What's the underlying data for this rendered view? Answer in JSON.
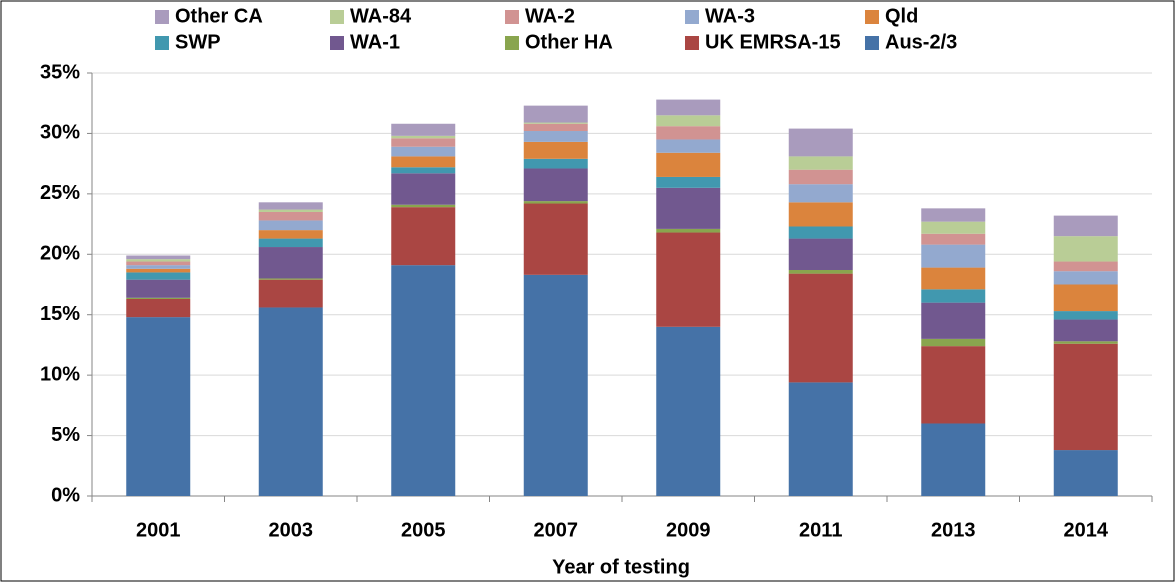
{
  "chart_data": {
    "type": "stacked-bar",
    "x_label": "Year of testing",
    "categories": [
      "2001",
      "2003",
      "2005",
      "2007",
      "2009",
      "2011",
      "2013",
      "2014"
    ],
    "series": [
      {
        "name": "Aus-2/3",
        "color": "#4572a7",
        "values": [
          14.8,
          15.6,
          19.1,
          18.3,
          14.0,
          9.4,
          6.0,
          3.8
        ]
      },
      {
        "name": "UK EMRSA-15",
        "color": "#aa4643",
        "values": [
          1.5,
          2.3,
          4.8,
          5.9,
          7.8,
          9.0,
          6.4,
          8.8
        ]
      },
      {
        "name": "Other HA",
        "color": "#89a54e",
        "values": [
          0.1,
          0.1,
          0.2,
          0.2,
          0.3,
          0.3,
          0.6,
          0.2
        ]
      },
      {
        "name": "WA-1",
        "color": "#71588f",
        "values": [
          1.5,
          2.6,
          2.6,
          2.7,
          3.4,
          2.6,
          3.0,
          1.8
        ]
      },
      {
        "name": "SWP",
        "color": "#4198af",
        "values": [
          0.6,
          0.7,
          0.5,
          0.8,
          0.9,
          1.0,
          1.1,
          0.7
        ]
      },
      {
        "name": "Qld",
        "color": "#db843d",
        "values": [
          0.3,
          0.7,
          0.9,
          1.4,
          2.0,
          2.0,
          1.8,
          2.2
        ]
      },
      {
        "name": "WA-3",
        "color": "#93a9cf",
        "values": [
          0.3,
          0.8,
          0.8,
          0.9,
          1.1,
          1.5,
          1.9,
          1.1
        ]
      },
      {
        "name": "WA-2",
        "color": "#d19392",
        "values": [
          0.3,
          0.7,
          0.7,
          0.6,
          1.1,
          1.2,
          0.9,
          0.8
        ]
      },
      {
        "name": "WA-84",
        "color": "#b9cd96",
        "values": [
          0.2,
          0.2,
          0.2,
          0.1,
          0.9,
          1.1,
          1.0,
          2.1
        ]
      },
      {
        "name": "Other CA",
        "color": "#a99bbd",
        "values": [
          0.3,
          0.6,
          1.0,
          1.4,
          1.3,
          2.3,
          1.1,
          1.7
        ]
      }
    ],
    "ylim": [
      0,
      35
    ],
    "yticks": [
      {
        "value": 0,
        "label": "0%"
      },
      {
        "value": 5,
        "label": "5%"
      },
      {
        "value": 10,
        "label": "10%"
      },
      {
        "value": 15,
        "label": "15%"
      },
      {
        "value": 20,
        "label": "20%"
      },
      {
        "value": 25,
        "label": "25%"
      },
      {
        "value": 30,
        "label": "30%"
      },
      {
        "value": 35,
        "label": "35%"
      }
    ],
    "grid": true,
    "legend": "top"
  }
}
